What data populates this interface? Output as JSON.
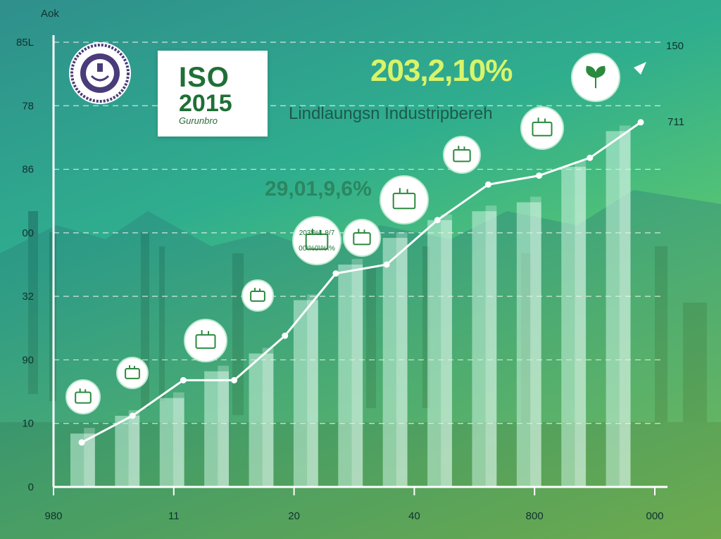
{
  "chart_data": {
    "type": "bar",
    "title": "",
    "headline_value": "203,2,10%",
    "headline_subtitle": "Lindlaungsn Industripbereh",
    "secondary_value": "29,01,9,6%",
    "corner_label": "Aok",
    "badge_label": "ISO",
    "badge_year": "2015",
    "badge_caption": "Gurunbro",
    "small_badge_text_1": "203\\%1 8/7",
    "small_badge_text_2": "00\\%0\\%\\%",
    "y_tick_labels_left": [
      "0",
      "10",
      "90",
      "32",
      "00",
      "86",
      "78",
      "85L"
    ],
    "y_tick_labels_right": [
      "150",
      "711"
    ],
    "x_tick_labels": [
      "980",
      "11",
      "20",
      "40",
      "800",
      "000"
    ],
    "bars": [
      12,
      16,
      20,
      26,
      30,
      42,
      50,
      56,
      60,
      62,
      64,
      72,
      80
    ],
    "trend_line": [
      10,
      16,
      24,
      24,
      34,
      48,
      50,
      60,
      68,
      70,
      74,
      82
    ],
    "ylim": [
      0,
      100
    ],
    "grid": true,
    "colors": {
      "bar": "#c9f3de",
      "line": "#ffffff",
      "icon_border": "#ffffff",
      "icon_fill": "#ffffff",
      "icon_ink": "#2b8a3e"
    }
  }
}
